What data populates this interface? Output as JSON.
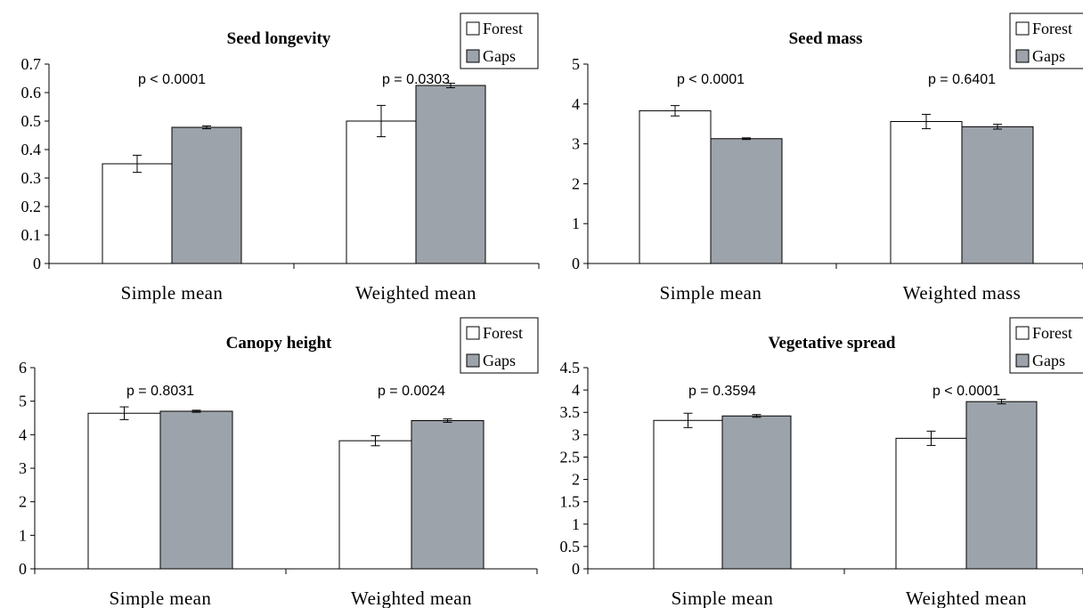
{
  "colors": {
    "forest": "#ffffff",
    "gaps": "#9da3aa"
  },
  "chart_data": [
    {
      "type": "bar",
      "title": "Seed longevity",
      "categories": [
        "Simple mean",
        "Weighted mean"
      ],
      "series": [
        {
          "name": "Forest",
          "values": [
            0.35,
            0.5
          ],
          "errors": [
            0.03,
            0.055
          ]
        },
        {
          "name": "Gaps",
          "values": [
            0.478,
            0.625
          ],
          "errors": [
            0.005,
            0.008
          ]
        }
      ],
      "ylim": [
        0,
        0.7
      ],
      "yticks": [
        "0",
        "0.1",
        "0.2",
        "0.3",
        "0.4",
        "0.5",
        "0.6",
        "0.7"
      ],
      "annotations": [
        "p < 0.0001",
        "p = 0.0303"
      ],
      "legend": [
        "Forest",
        "Gaps"
      ],
      "legend_position": "top-right",
      "grid": false
    },
    {
      "type": "bar",
      "title": "Seed mass",
      "categories": [
        "Simple mean",
        "Weighted mass"
      ],
      "series": [
        {
          "name": "Forest",
          "values": [
            3.83,
            3.56
          ],
          "errors": [
            0.13,
            0.18
          ]
        },
        {
          "name": "Gaps",
          "values": [
            3.13,
            3.43
          ],
          "errors": [
            0.02,
            0.06
          ]
        }
      ],
      "ylim": [
        0,
        5
      ],
      "yticks": [
        "0",
        "1",
        "2",
        "3",
        "4",
        "5"
      ],
      "annotations": [
        "p < 0.0001",
        "p = 0.6401"
      ],
      "legend": [
        "Forest",
        "Gaps"
      ],
      "legend_position": "top-right",
      "grid": false
    },
    {
      "type": "bar",
      "title": "Canopy height",
      "categories": [
        "Simple mean",
        "Weighted mean"
      ],
      "series": [
        {
          "name": "Forest",
          "values": [
            4.64,
            3.82
          ],
          "errors": [
            0.19,
            0.15
          ]
        },
        {
          "name": "Gaps",
          "values": [
            4.7,
            4.42
          ],
          "errors": [
            0.03,
            0.05
          ]
        }
      ],
      "ylim": [
        0,
        6
      ],
      "yticks": [
        "0",
        "1",
        "2",
        "3",
        "4",
        "5",
        "6"
      ],
      "annotations": [
        "p = 0.8031",
        "p = 0.0024"
      ],
      "legend": [
        "Forest",
        "Gaps"
      ],
      "legend_position": "top-right",
      "grid": false
    },
    {
      "type": "bar",
      "title": "Vegetative spread",
      "categories": [
        "Simple mean",
        "Weighted mean"
      ],
      "series": [
        {
          "name": "Forest",
          "values": [
            3.32,
            2.92
          ],
          "errors": [
            0.16,
            0.16
          ]
        },
        {
          "name": "Gaps",
          "values": [
            3.42,
            3.74
          ],
          "errors": [
            0.03,
            0.05
          ]
        }
      ],
      "ylim": [
        0,
        4.5
      ],
      "yticks": [
        "0",
        "0.5",
        "1",
        "1.5",
        "2",
        "2.5",
        "3",
        "3.5",
        "4",
        "4.5"
      ],
      "annotations": [
        "p = 0.3594",
        "p < 0.0001"
      ],
      "legend": [
        "Forest",
        "Gaps"
      ],
      "legend_position": "top-right",
      "grid": false
    }
  ]
}
